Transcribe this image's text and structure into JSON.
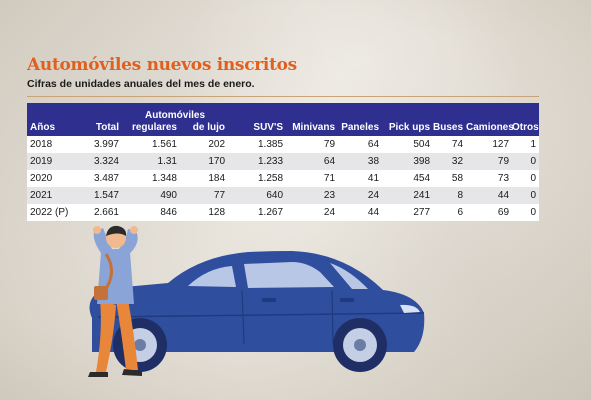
{
  "title": "Automóviles nuevos inscritos",
  "subtitle": "Cifras de unidades anuales del mes de enero.",
  "colors": {
    "title": "#e0601e",
    "header_bg": "#2e2f8f",
    "car": "#2f4f9e",
    "car_dark": "#1f3a80",
    "person_shirt": "#8aa4d8",
    "person_pants": "#e8873a"
  },
  "icons": [
    "person-illustration",
    "car-illustration"
  ],
  "chart_data": {
    "type": "table",
    "title": "Automóviles nuevos inscritos",
    "subtitle": "Cifras de unidades anuales del mes de enero.",
    "group_header": "Automóviles",
    "columns": [
      "Años",
      "Total",
      "regulares",
      "de lujo",
      "SUV'S",
      "Minivans",
      "Paneles",
      "Pick ups",
      "Buses",
      "Camiones",
      "Otros"
    ],
    "rows": [
      [
        "2018",
        "3.997",
        "1.561",
        "202",
        "1.385",
        "79",
        "64",
        "504",
        "74",
        "127",
        "1"
      ],
      [
        "2019",
        "3.324",
        "1.31",
        "170",
        "1.233",
        "64",
        "38",
        "398",
        "32",
        "79",
        "0"
      ],
      [
        "2020",
        "3.487",
        "1.348",
        "184",
        "1.258",
        "71",
        "41",
        "454",
        "58",
        "73",
        "0"
      ],
      [
        "2021",
        "1.547",
        "490",
        "77",
        "640",
        "23",
        "24",
        "241",
        "8",
        "44",
        "0"
      ],
      [
        "2022 (P)",
        "2.661",
        "846",
        "128",
        "1.267",
        "24",
        "44",
        "277",
        "6",
        "69",
        "0"
      ]
    ]
  }
}
